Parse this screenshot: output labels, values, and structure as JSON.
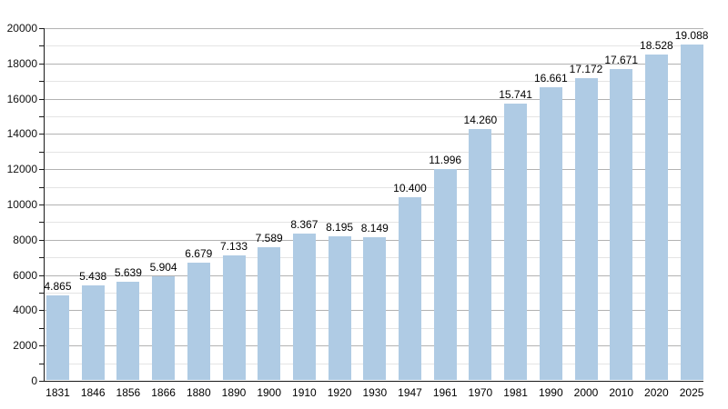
{
  "chart_data": {
    "type": "bar",
    "title": "",
    "xlabel": "",
    "ylabel": "",
    "categories": [
      "1831",
      "1846",
      "1856",
      "1866",
      "1880",
      "1890",
      "1900",
      "1910",
      "1920",
      "1930",
      "1947",
      "1961",
      "1970",
      "1981",
      "1990",
      "2000",
      "2010",
      "2020",
      "2025"
    ],
    "values": [
      4865,
      5438,
      5639,
      5904,
      6679,
      7133,
      7589,
      8367,
      8195,
      8149,
      10400,
      11996,
      14260,
      15741,
      16661,
      17172,
      17671,
      18528,
      19088
    ],
    "bar_labels": [
      "4.865",
      "5.438",
      "5.639",
      "5.904",
      "6.679",
      "7.133",
      "7.589",
      "8.367",
      "8.195",
      "8.149",
      "10.400",
      "11.996",
      "14.260",
      "15.741",
      "16.661",
      "17.172",
      "17.671",
      "18.528",
      "19.088"
    ],
    "ylim": [
      0,
      20000
    ],
    "y_major_step": 2000,
    "y_minor_step": 1000,
    "y_tick_labels": [
      "0",
      "2000",
      "4000",
      "6000",
      "8000",
      "10000",
      "12000",
      "14000",
      "16000",
      "18000",
      "20000"
    ],
    "grid": "horizontal major and minor, behind bars",
    "legend": "none",
    "colors": {
      "bar": "#afcbe4",
      "axis": "#1a1a1a",
      "major_grid": "#b2b2b2",
      "minor_grid": "#e4e4e4",
      "text": "#000000",
      "background": "#ffffff"
    }
  }
}
